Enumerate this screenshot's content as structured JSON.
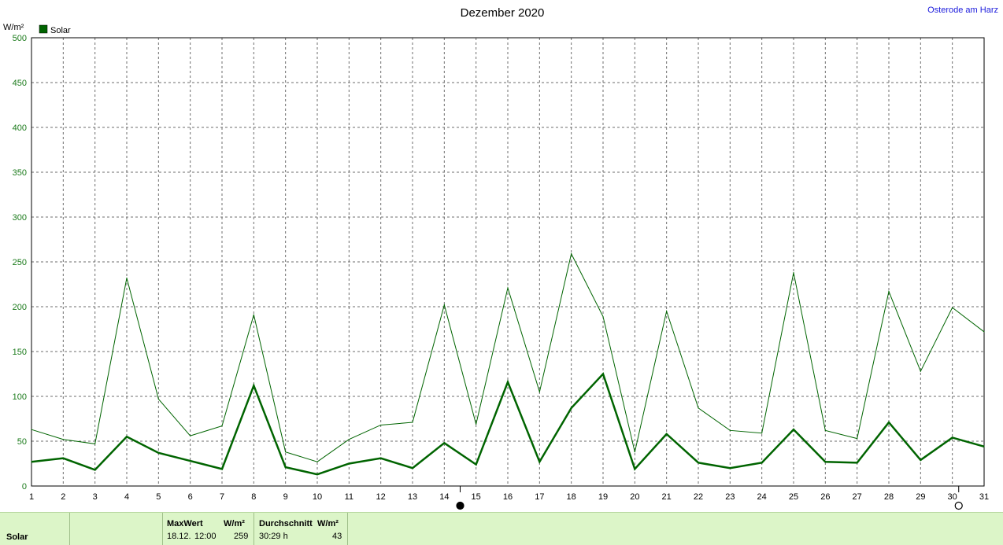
{
  "chart_data": {
    "type": "line",
    "title": "Dezember 2020",
    "location": "Osterode am Harz",
    "ylabel": "W/m²",
    "ylim": [
      0,
      500
    ],
    "yticks": [
      0,
      50,
      100,
      150,
      200,
      250,
      300,
      350,
      400,
      450,
      500
    ],
    "x": [
      1,
      2,
      3,
      4,
      5,
      6,
      7,
      8,
      9,
      10,
      11,
      12,
      13,
      14,
      15,
      16,
      17,
      18,
      19,
      20,
      21,
      22,
      23,
      24,
      25,
      26,
      27,
      28,
      29,
      30,
      31
    ],
    "x_markers": [
      {
        "x": 14.5,
        "symbol": "new-moon-icon"
      },
      {
        "x": 30.2,
        "symbol": "full-moon-icon"
      }
    ],
    "legend": [
      {
        "name": "Solar",
        "color": "#006400"
      }
    ],
    "series": [
      {
        "name": "Solar",
        "color": "#006400",
        "width": 1,
        "values": [
          63,
          52,
          47,
          232,
          97,
          56,
          67,
          191,
          38,
          27,
          52,
          68,
          71,
          202,
          69,
          221,
          105,
          259,
          189,
          38,
          195,
          87,
          62,
          59,
          238,
          62,
          53,
          217,
          128,
          199,
          172
        ]
      },
      {
        "name": "Solar",
        "color": "#006400",
        "width": 2.5,
        "values": [
          27,
          31,
          18,
          55,
          37,
          28,
          19,
          112,
          21,
          13,
          25,
          31,
          20,
          48,
          24,
          116,
          27,
          87,
          125,
          19,
          58,
          26,
          20,
          26,
          63,
          27,
          26,
          71,
          29,
          54,
          44
        ]
      }
    ]
  },
  "footer": {
    "label": "Solar",
    "max_header": "MaxWert",
    "max_unit": "W/m²",
    "max_date": "18.12.",
    "max_time": "12:00",
    "max_value": "259",
    "avg_header": "Durchschnitt",
    "avg_unit": "W/m²",
    "avg_duration": "30:29 h",
    "avg_value": "43"
  }
}
